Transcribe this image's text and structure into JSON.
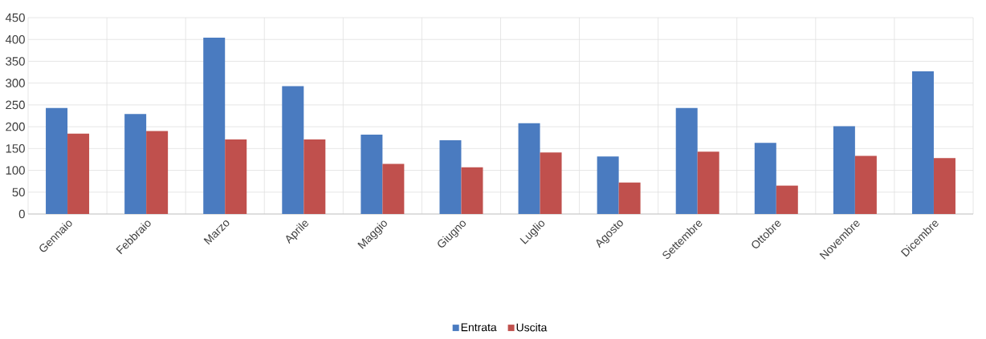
{
  "chart_data": {
    "type": "bar",
    "categories": [
      "Gennaio",
      "Febbraio",
      "Marzo",
      "Aprile",
      "Maggio",
      "Giugno",
      "Luglio",
      "Agosto",
      "Settembre",
      "Ottobre",
      "Novembre",
      "Dicembre"
    ],
    "series": [
      {
        "name": "Entrata",
        "color": "#4a7bc0",
        "values": [
          243,
          229,
          404,
          293,
          182,
          169,
          208,
          132,
          243,
          163,
          201,
          327
        ]
      },
      {
        "name": "Uscita",
        "color": "#c0504d",
        "values": [
          184,
          190,
          171,
          171,
          115,
          107,
          141,
          72,
          143,
          65,
          133,
          128
        ]
      }
    ],
    "ylim": [
      0,
      450
    ],
    "yticks": [
      0,
      50,
      100,
      150,
      200,
      250,
      300,
      350,
      400,
      450
    ],
    "grid": true,
    "legend": "bottom"
  }
}
